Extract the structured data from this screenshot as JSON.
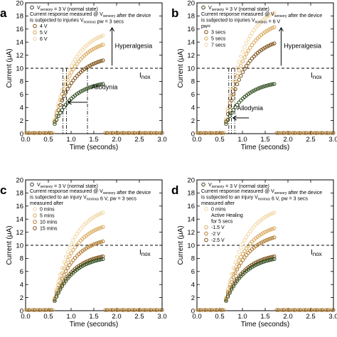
{
  "chart_data": [
    {
      "type": "scatter",
      "panel_label": "a",
      "xlabel": "Time (seconds)",
      "ylabel": "Current (μA)",
      "xlim": [
        0.0,
        3.0
      ],
      "ylim": [
        0,
        20
      ],
      "xticks": [
        "0.0",
        "0.5",
        "1.0",
        "1.5",
        "2.0",
        "2.5",
        "3.0"
      ],
      "yticks": [
        "0",
        "2",
        "4",
        "6",
        "8",
        "10",
        "12",
        "14",
        "16",
        "18",
        "20"
      ],
      "legend_lines": [
        "V_sensory = 3 V (normal state)",
        "Current response measured @ V_sensory after the device",
        "is subjected to injuries V_noxious pw = 3 secs"
      ],
      "pulse": {
        "off_before": [
          0.0,
          0.6
        ],
        "rise": [
          0.64,
          1.7
        ],
        "off_after": [
          1.75,
          3.0
        ]
      },
      "threshold": {
        "label": "Inox",
        "value": 10
      },
      "annotations": [
        "Hyperalgesia",
        "Allodynia"
      ],
      "series": [
        {
          "name": "V_sensory = 3 V (normal state)",
          "color": "#2d4a1c",
          "start": 1.5,
          "end": 7.6
        },
        {
          "name": "4 V",
          "color": "#7a4e14",
          "start": 1.8,
          "end": 11.2
        },
        {
          "name": "5 V",
          "color": "#d9a85b",
          "start": 2.0,
          "end": 13.6
        },
        {
          "name": "6 V",
          "color": "#f1d6a4",
          "start": 2.2,
          "end": 15.0
        }
      ]
    },
    {
      "type": "scatter",
      "panel_label": "b",
      "xlabel": "Time (seconds)",
      "ylabel": "Current (μA)",
      "xlim": [
        0.0,
        3.0
      ],
      "ylim": [
        0,
        20
      ],
      "xticks": [
        "0.0",
        "0.5",
        "1.0",
        "1.5",
        "2.0",
        "2.5",
        "3.0"
      ],
      "yticks": [
        "0",
        "2",
        "4",
        "6",
        "8",
        "10",
        "12",
        "14",
        "16",
        "18",
        "20"
      ],
      "legend_lines": [
        "V_sensory = 3 V (normal state)",
        "Current response measured @ V_sensory after the device",
        "is subjected to injuries V_noxious = 6 V",
        "pw="
      ],
      "pulse": {
        "off_before": [
          0.0,
          0.6
        ],
        "rise": [
          0.64,
          1.7
        ],
        "off_after": [
          1.75,
          3.0
        ]
      },
      "threshold": {
        "label": "Inox",
        "value": 10
      },
      "annotations": [
        "Hyperalgesia",
        "Allodynia"
      ],
      "series": [
        {
          "name": "V_sensory = 3 V (normal state)",
          "color": "#2d4a1c",
          "start": 1.5,
          "end": 7.6
        },
        {
          "name": "3 secs",
          "color": "#7a4e14",
          "start": 1.8,
          "end": 13.8
        },
        {
          "name": "5 secs",
          "color": "#d9a85b",
          "start": 2.0,
          "end": 16.3
        },
        {
          "name": "7 secs",
          "color": "#f1d6a4",
          "start": 2.3,
          "end": 18.5
        }
      ]
    },
    {
      "type": "scatter",
      "panel_label": "c",
      "xlabel": "Time (seconds)",
      "ylabel": "Current (μA)",
      "xlim": [
        0.0,
        3.0
      ],
      "ylim": [
        0,
        20
      ],
      "xticks": [
        "0.0",
        "0.5",
        "1.0",
        "1.5",
        "2.0",
        "2.5",
        "3.0"
      ],
      "yticks": [
        "0",
        "2",
        "4",
        "6",
        "8",
        "10",
        "12",
        "14",
        "16",
        "18",
        "20"
      ],
      "legend_lines": [
        "V_sensory = 3 V (normal state)",
        "Current response measured @ V_sensory after the device",
        "is subjected to an injury V_noxious 6 V, pw = 3 secs",
        "measured after"
      ],
      "pulse": {
        "off_before": [
          0.0,
          0.6
        ],
        "rise": [
          0.64,
          1.7
        ],
        "off_after": [
          1.75,
          3.0
        ]
      },
      "threshold": {
        "label": "Inox",
        "value": 10
      },
      "annotations": [],
      "series": [
        {
          "name": "V_sensory = 3 V (normal state)",
          "color": "#2d4a1c",
          "start": 1.5,
          "end": 7.9
        },
        {
          "name": "0 mins",
          "color": "#f1d6a4",
          "start": 2.0,
          "end": 15.0
        },
        {
          "name": "5 mins",
          "color": "#d9a85b",
          "start": 1.9,
          "end": 12.8
        },
        {
          "name": "10 mins",
          "color": "#b07a30",
          "start": 1.8,
          "end": 10.6
        },
        {
          "name": "15 mins",
          "color": "#7a4e14",
          "start": 1.7,
          "end": 8.3
        }
      ]
    },
    {
      "type": "scatter",
      "panel_label": "d",
      "xlabel": "Time (seconds)",
      "ylabel": "Current (μA)",
      "xlim": [
        0.0,
        3.0
      ],
      "ylim": [
        0,
        20
      ],
      "xticks": [
        "0.0",
        "0.5",
        "1.0",
        "1.5",
        "2.0",
        "2.5",
        "3.0"
      ],
      "yticks": [
        "0",
        "2",
        "4",
        "6",
        "8",
        "10",
        "12",
        "14",
        "16",
        "18",
        "20"
      ],
      "legend_lines": [
        "V_sensory = 3 V (normal state)",
        "Current response measured @ V_sensory after the device",
        "is subjected to an injury V_noxious 6 V, pw = 3 secs",
        "measured after",
        "Active Healing",
        "for 5 secs"
      ],
      "pulse": {
        "off_before": [
          0.0,
          0.6
        ],
        "rise": [
          0.64,
          1.7
        ],
        "off_after": [
          1.75,
          3.0
        ]
      },
      "threshold": {
        "label": "Inox",
        "value": 10
      },
      "annotations": [],
      "series": [
        {
          "name": "V_sensory = 3 V (normal state)",
          "color": "#2d4a1c",
          "start": 1.5,
          "end": 7.9
        },
        {
          "name": "0 mins",
          "color": "#f1d6a4",
          "start": 2.0,
          "end": 15.0
        },
        {
          "name": "-1.5 V",
          "color": "#d9a85b",
          "start": 1.9,
          "end": 12.6
        },
        {
          "name": "-2 V",
          "color": "#b07a30",
          "start": 1.8,
          "end": 11.2
        },
        {
          "name": "-2.5 V",
          "color": "#7a4e14",
          "start": 1.7,
          "end": 8.3
        }
      ]
    }
  ]
}
